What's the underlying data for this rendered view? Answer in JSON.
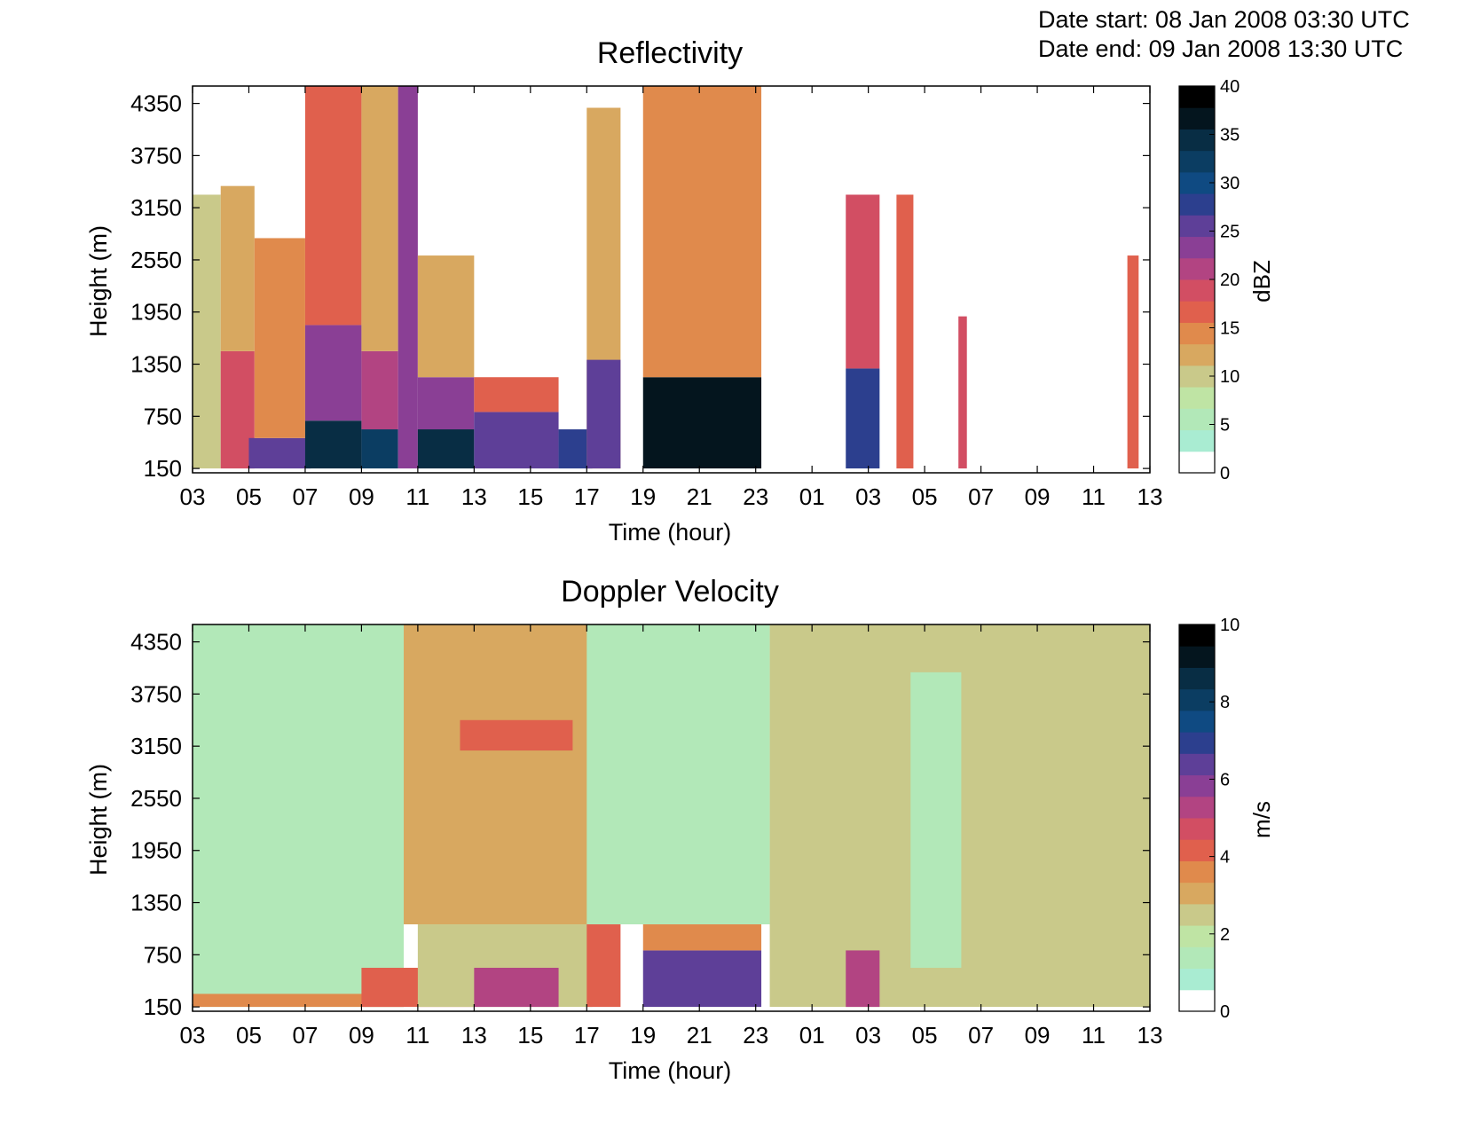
{
  "header": {
    "date_start": "Date start: 08 Jan 2008 03:30 UTC",
    "date_end": "Date end:  09 Jan 2008 13:30 UTC"
  },
  "colors": {
    "palette": [
      "#ffffff",
      "#a9ecd2",
      "#b2e8b8",
      "#bfe4a4",
      "#c9c98a",
      "#d8a860",
      "#e08a4c",
      "#e0604d",
      "#d24e63",
      "#b24482",
      "#8a3f95",
      "#5e3f98",
      "#2c3f8e",
      "#0f4a82",
      "#0b3d62",
      "#082d44",
      "#04151e",
      "#000000"
    ]
  },
  "chart_data": [
    {
      "type": "heatmap",
      "title": "Reflectivity",
      "xlabel": "Time (hour)",
      "ylabel": "Height (m)",
      "x_ticks": [
        "03",
        "05",
        "07",
        "09",
        "11",
        "13",
        "15",
        "17",
        "19",
        "21",
        "23",
        "01",
        "03",
        "05",
        "07",
        "09",
        "11",
        "13"
      ],
      "x_range_hours_since_start": [
        0,
        34
      ],
      "y_ticks": [
        "150",
        "750",
        "1350",
        "1950",
        "2550",
        "3150",
        "3750",
        "4350"
      ],
      "ylim": [
        100,
        4550
      ],
      "colorbar": {
        "label": "dBZ",
        "range": [
          0,
          40
        ],
        "ticks": [
          "0",
          "5",
          "10",
          "15",
          "20",
          "25",
          "30",
          "35",
          "40"
        ]
      },
      "cells": [
        {
          "t0": 0.0,
          "t1": 1.0,
          "h0": 150,
          "h1": 3300,
          "value": 11
        },
        {
          "t0": 1.0,
          "t1": 2.2,
          "h0": 150,
          "h1": 1500,
          "value": 19
        },
        {
          "t0": 1.0,
          "t1": 2.2,
          "h0": 1500,
          "h1": 3400,
          "value": 12
        },
        {
          "t0": 2.0,
          "t1": 4.2,
          "h0": 150,
          "h1": 500,
          "value": 26
        },
        {
          "t0": 2.2,
          "t1": 4.0,
          "h0": 500,
          "h1": 2800,
          "value": 16
        },
        {
          "t0": 4.0,
          "t1": 6.0,
          "h0": 150,
          "h1": 700,
          "value": 36
        },
        {
          "t0": 4.0,
          "t1": 6.0,
          "h0": 700,
          "h1": 1800,
          "value": 25
        },
        {
          "t0": 4.0,
          "t1": 6.0,
          "h0": 1800,
          "h1": 4550,
          "value": 18
        },
        {
          "t0": 6.0,
          "t1": 7.3,
          "h0": 150,
          "h1": 600,
          "value": 35
        },
        {
          "t0": 6.0,
          "t1": 7.3,
          "h0": 600,
          "h1": 1500,
          "value": 22
        },
        {
          "t0": 6.0,
          "t1": 7.3,
          "h0": 1500,
          "h1": 4550,
          "value": 14
        },
        {
          "t0": 7.3,
          "t1": 8.0,
          "h0": 150,
          "h1": 4550,
          "value": 24
        },
        {
          "t0": 8.0,
          "t1": 10.0,
          "h0": 150,
          "h1": 600,
          "value": 37
        },
        {
          "t0": 8.0,
          "t1": 10.0,
          "h0": 600,
          "h1": 1200,
          "value": 24
        },
        {
          "t0": 8.0,
          "t1": 10.0,
          "h0": 1200,
          "h1": 2600,
          "value": 12
        },
        {
          "t0": 10.0,
          "t1": 13.0,
          "h0": 150,
          "h1": 800,
          "value": 28
        },
        {
          "t0": 10.0,
          "t1": 13.0,
          "h0": 800,
          "h1": 1200,
          "value": 18
        },
        {
          "t0": 13.0,
          "t1": 14.2,
          "h0": 150,
          "h1": 600,
          "value": 30
        },
        {
          "t0": 14.0,
          "t1": 15.2,
          "h0": 150,
          "h1": 4300,
          "value": 14
        },
        {
          "t0": 14.0,
          "t1": 15.2,
          "h0": 150,
          "h1": 1400,
          "value": 26
        },
        {
          "t0": 16.0,
          "t1": 20.2,
          "h0": 150,
          "h1": 1200,
          "value": 38
        },
        {
          "t0": 16.0,
          "t1": 20.2,
          "h0": 1200,
          "h1": 4550,
          "value": 15
        },
        {
          "t0": 23.2,
          "t1": 24.4,
          "h0": 150,
          "h1": 1300,
          "value": 30
        },
        {
          "t0": 23.2,
          "t1": 24.4,
          "h0": 1300,
          "h1": 3300,
          "value": 20
        },
        {
          "t0": 25.0,
          "t1": 25.6,
          "h0": 150,
          "h1": 3300,
          "value": 18
        },
        {
          "t0": 27.2,
          "t1": 27.5,
          "h0": 150,
          "h1": 1900,
          "value": 20
        },
        {
          "t0": 33.2,
          "t1": 33.6,
          "h0": 150,
          "h1": 2600,
          "value": 17
        }
      ]
    },
    {
      "type": "heatmap",
      "title": "Doppler Velocity",
      "xlabel": "Time (hour)",
      "ylabel": "Height (m)",
      "x_ticks": [
        "03",
        "05",
        "07",
        "09",
        "11",
        "13",
        "15",
        "17",
        "19",
        "21",
        "23",
        "01",
        "03",
        "05",
        "07",
        "09",
        "11",
        "13"
      ],
      "x_range_hours_since_start": [
        0,
        34
      ],
      "y_ticks": [
        "150",
        "750",
        "1350",
        "1950",
        "2550",
        "3150",
        "3750",
        "4350"
      ],
      "ylim": [
        100,
        4550
      ],
      "colorbar": {
        "label": "m/s",
        "range": [
          0,
          10
        ],
        "ticks": [
          "0",
          "2",
          "4",
          "6",
          "8",
          "10"
        ]
      },
      "cells": [
        {
          "t0": 0.0,
          "t1": 7.5,
          "h0": 150,
          "h1": 4550,
          "value": 1.3
        },
        {
          "t0": 0.0,
          "t1": 7.5,
          "h0": 150,
          "h1": 300,
          "value": 3.6
        },
        {
          "t0": 6.0,
          "t1": 10.0,
          "h0": 150,
          "h1": 600,
          "value": 4.3
        },
        {
          "t0": 7.5,
          "t1": 14.2,
          "h0": 1100,
          "h1": 4550,
          "value": 3.2
        },
        {
          "t0": 8.0,
          "t1": 14.2,
          "h0": 150,
          "h1": 1100,
          "value": 2.6
        },
        {
          "t0": 9.5,
          "t1": 13.5,
          "h0": 3100,
          "h1": 3450,
          "value": 4.4
        },
        {
          "t0": 10.0,
          "t1": 13.0,
          "h0": 150,
          "h1": 600,
          "value": 5.4
        },
        {
          "t0": 14.0,
          "t1": 20.5,
          "h0": 1100,
          "h1": 4550,
          "value": 1.3
        },
        {
          "t0": 14.0,
          "t1": 15.2,
          "h0": 150,
          "h1": 1100,
          "value": 4.2
        },
        {
          "t0": 16.0,
          "t1": 20.2,
          "h0": 150,
          "h1": 800,
          "value": 7.0
        },
        {
          "t0": 16.0,
          "t1": 20.2,
          "h0": 800,
          "h1": 1100,
          "value": 3.8
        },
        {
          "t0": 20.5,
          "t1": 34.0,
          "h0": 150,
          "h1": 4550,
          "value": 2.9
        },
        {
          "t0": 23.2,
          "t1": 24.4,
          "h0": 150,
          "h1": 800,
          "value": 5.6
        },
        {
          "t0": 25.5,
          "t1": 27.3,
          "h0": 600,
          "h1": 4000,
          "value": 1.5
        }
      ]
    }
  ]
}
